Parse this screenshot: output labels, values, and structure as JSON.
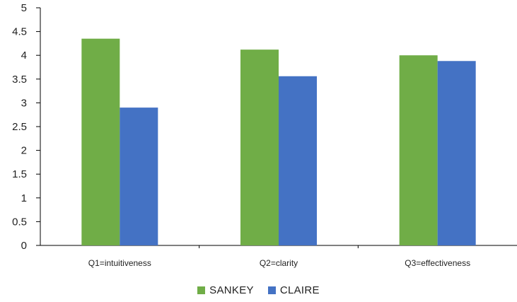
{
  "chart_data": {
    "type": "bar",
    "categories": [
      "Q1=intuitiveness",
      "Q2=clarity",
      "Q3=effectiveness"
    ],
    "series": [
      {
        "name": "SANKEY",
        "values": [
          4.35,
          4.12,
          4.0
        ],
        "color": "#70ad47"
      },
      {
        "name": "CLAIRE",
        "values": [
          2.9,
          3.56,
          3.88
        ],
        "color": "#4472c4"
      }
    ],
    "title": "",
    "xlabel": "",
    "ylabel": "",
    "ylim": [
      0,
      5
    ],
    "yticks": [
      "0",
      "0.5",
      "1",
      "1.5",
      "2",
      "2.5",
      "3",
      "3.5",
      "4",
      "4.5",
      "5"
    ],
    "grid": false,
    "legend_position": "bottom"
  }
}
